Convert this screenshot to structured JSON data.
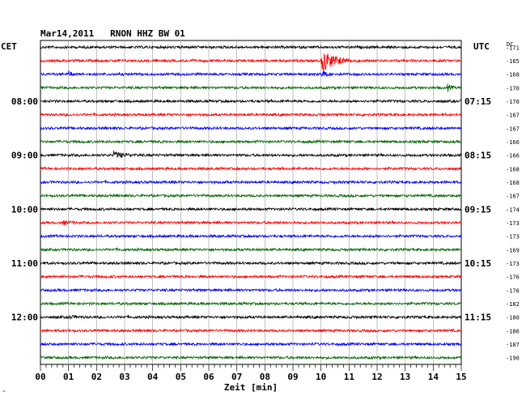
{
  "chart_data": {
    "type": "line",
    "title": "Mar14,2011   RNON HHZ BW 01",
    "left_axis_label": "CET",
    "right_axis_label": "UTC",
    "right_column_header": "DC",
    "xlabel": "Zeit [min]",
    "xlim": [
      0,
      15
    ],
    "x_ticks": [
      "00",
      "01",
      "02",
      "03",
      "04",
      "05",
      "06",
      "07",
      "08",
      "09",
      "10",
      "11",
      "12",
      "13",
      "14",
      "15"
    ],
    "grid": true,
    "trace_colors": [
      "#000000",
      "#ff0000",
      "#0000ff",
      "#006400"
    ],
    "left_time_labels": [
      {
        "row": 4,
        "label": "08:00"
      },
      {
        "row": 8,
        "label": "09:00"
      },
      {
        "row": 12,
        "label": "10:00"
      },
      {
        "row": 16,
        "label": "11:00"
      },
      {
        "row": 20,
        "label": "12:00"
      }
    ],
    "right_time_labels": [
      {
        "row": 4,
        "label": "07:15"
      },
      {
        "row": 8,
        "label": "08:15"
      },
      {
        "row": 12,
        "label": "09:15"
      },
      {
        "row": 16,
        "label": "10:15"
      },
      {
        "row": 20,
        "label": "11:15"
      }
    ],
    "dc_offsets": [
      "-171",
      "-165",
      "-168",
      "-170",
      "-170",
      "-167",
      "-167",
      "-166",
      "-166",
      "-168",
      "-168",
      "-167",
      "-174",
      "-173",
      "-173",
      "-169",
      "-173",
      "-176",
      "-176",
      "-182",
      "-180",
      "-186",
      "-187",
      "-190"
    ],
    "events": [
      {
        "row": 1,
        "start_min": 10.0,
        "end_min": 11.4,
        "amplitude": 15,
        "label": ""
      },
      {
        "row": 2,
        "start_min": 10.0,
        "end_min": 10.6,
        "amplitude": 5,
        "label": ""
      },
      {
        "row": 2,
        "start_min": 1.0,
        "end_min": 1.4,
        "amplitude": 4,
        "label": ""
      },
      {
        "row": 3,
        "start_min": 14.5,
        "end_min": 14.9,
        "amplitude": 5,
        "label": ""
      },
      {
        "row": 8,
        "start_min": 2.6,
        "end_min": 4.0,
        "amplitude": 4,
        "label": ""
      },
      {
        "row": 13,
        "start_min": 0.8,
        "end_min": 1.8,
        "amplitude": 2.5,
        "label": ""
      },
      {
        "row": 20,
        "start_min": 1.0,
        "end_min": 2.0,
        "amplitude": 2,
        "label": ""
      }
    ]
  }
}
